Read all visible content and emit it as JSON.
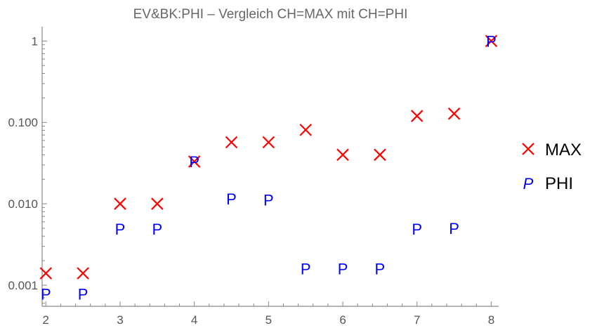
{
  "chart_data": {
    "type": "scatter",
    "title": "EV&BK:PHI – Vergleich CH=MAX mit CH=PHI",
    "xlabel": "",
    "ylabel": "",
    "yscale": "log",
    "xlim": [
      1.95,
      8.1
    ],
    "ylim": [
      0.00055,
      1.5
    ],
    "x_ticks": [
      2,
      3,
      4,
      5,
      6,
      7,
      8
    ],
    "x_tick_labels": [
      "2",
      "3",
      "4",
      "5",
      "6",
      "7",
      "8"
    ],
    "y_ticks": [
      0.001,
      0.01,
      0.1,
      1
    ],
    "y_tick_labels": [
      "0.001",
      "0.010",
      "0.100",
      "1"
    ],
    "grid": false,
    "legend_position": "right",
    "series": [
      {
        "name": "MAX",
        "marker": "X",
        "color": "#ff0000",
        "x": [
          2,
          2.5,
          3,
          3.5,
          4,
          4.5,
          5,
          5.5,
          6,
          6.5,
          7,
          7.5,
          8
        ],
        "y": [
          0.0014,
          0.0014,
          0.01,
          0.01,
          0.033,
          0.057,
          0.057,
          0.081,
          0.04,
          0.04,
          0.12,
          0.128,
          1.0
        ]
      },
      {
        "name": "PHI",
        "marker": "P",
        "color": "#0000ff",
        "x": [
          2,
          2.5,
          3,
          3.5,
          4,
          4.5,
          5,
          5.5,
          6,
          6.5,
          7,
          7.5,
          8
        ],
        "y": [
          0.00078,
          0.00078,
          0.0049,
          0.0049,
          0.033,
          0.0115,
          0.0112,
          0.0016,
          0.0016,
          0.0016,
          0.0049,
          0.005,
          1.0
        ]
      }
    ]
  }
}
